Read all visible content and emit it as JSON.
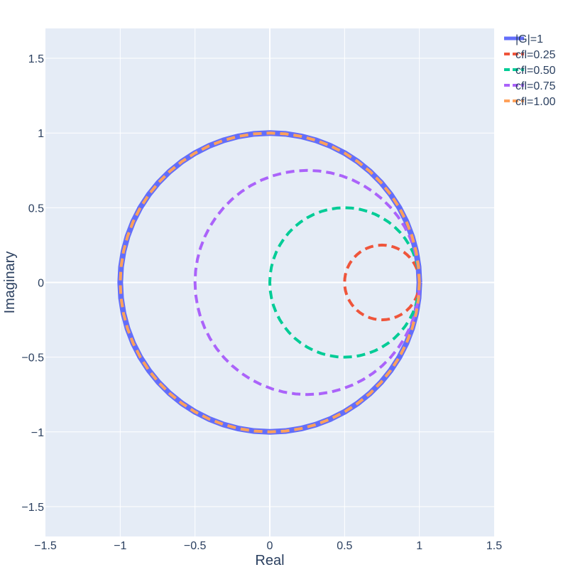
{
  "chart_data": {
    "type": "line",
    "title": "",
    "xlabel": "Real",
    "ylabel": "Imaginary",
    "xlim": [
      -1.5,
      1.5
    ],
    "ylim": [
      -1.7,
      1.7
    ],
    "x_ticks": [
      -1.5,
      -1,
      -0.5,
      0,
      0.5,
      1,
      1.5
    ],
    "x_tick_labels": [
      "−1.5",
      "−1",
      "−0.5",
      "0",
      "0.5",
      "1",
      "1.5"
    ],
    "y_ticks": [
      -1.5,
      -1,
      -0.5,
      0,
      0.5,
      1,
      1.5
    ],
    "y_tick_labels": [
      "−1.5",
      "−1",
      "−0.5",
      "0",
      "0.5",
      "1",
      "1.5"
    ],
    "grid": true,
    "legend_position": "top-right (outside plot area)",
    "series": [
      {
        "name": "|G|=1",
        "shape": "circle",
        "center": [
          0,
          0
        ],
        "radius": 1.0,
        "style": "solid",
        "color": "#636efa"
      },
      {
        "name": "cfl=0.25",
        "shape": "circle",
        "center": [
          0.75,
          0
        ],
        "radius": 0.25,
        "style": "dashed",
        "color": "#EF553B"
      },
      {
        "name": "cfl=0.50",
        "shape": "circle",
        "center": [
          0.5,
          0
        ],
        "radius": 0.5,
        "style": "dashed",
        "color": "#00cc96"
      },
      {
        "name": "cfl=0.75",
        "shape": "circle",
        "center": [
          0.25,
          0
        ],
        "radius": 0.75,
        "style": "dashed",
        "color": "#ab63fa"
      },
      {
        "name": "cfl=1.00",
        "shape": "circle",
        "center": [
          0,
          0
        ],
        "radius": 1.0,
        "style": "dashed",
        "color": "#FFA15A"
      }
    ]
  },
  "colors": {
    "plot_background": "#e5ecf6",
    "grid": "#ffffff",
    "text": "#2a3f5f"
  }
}
